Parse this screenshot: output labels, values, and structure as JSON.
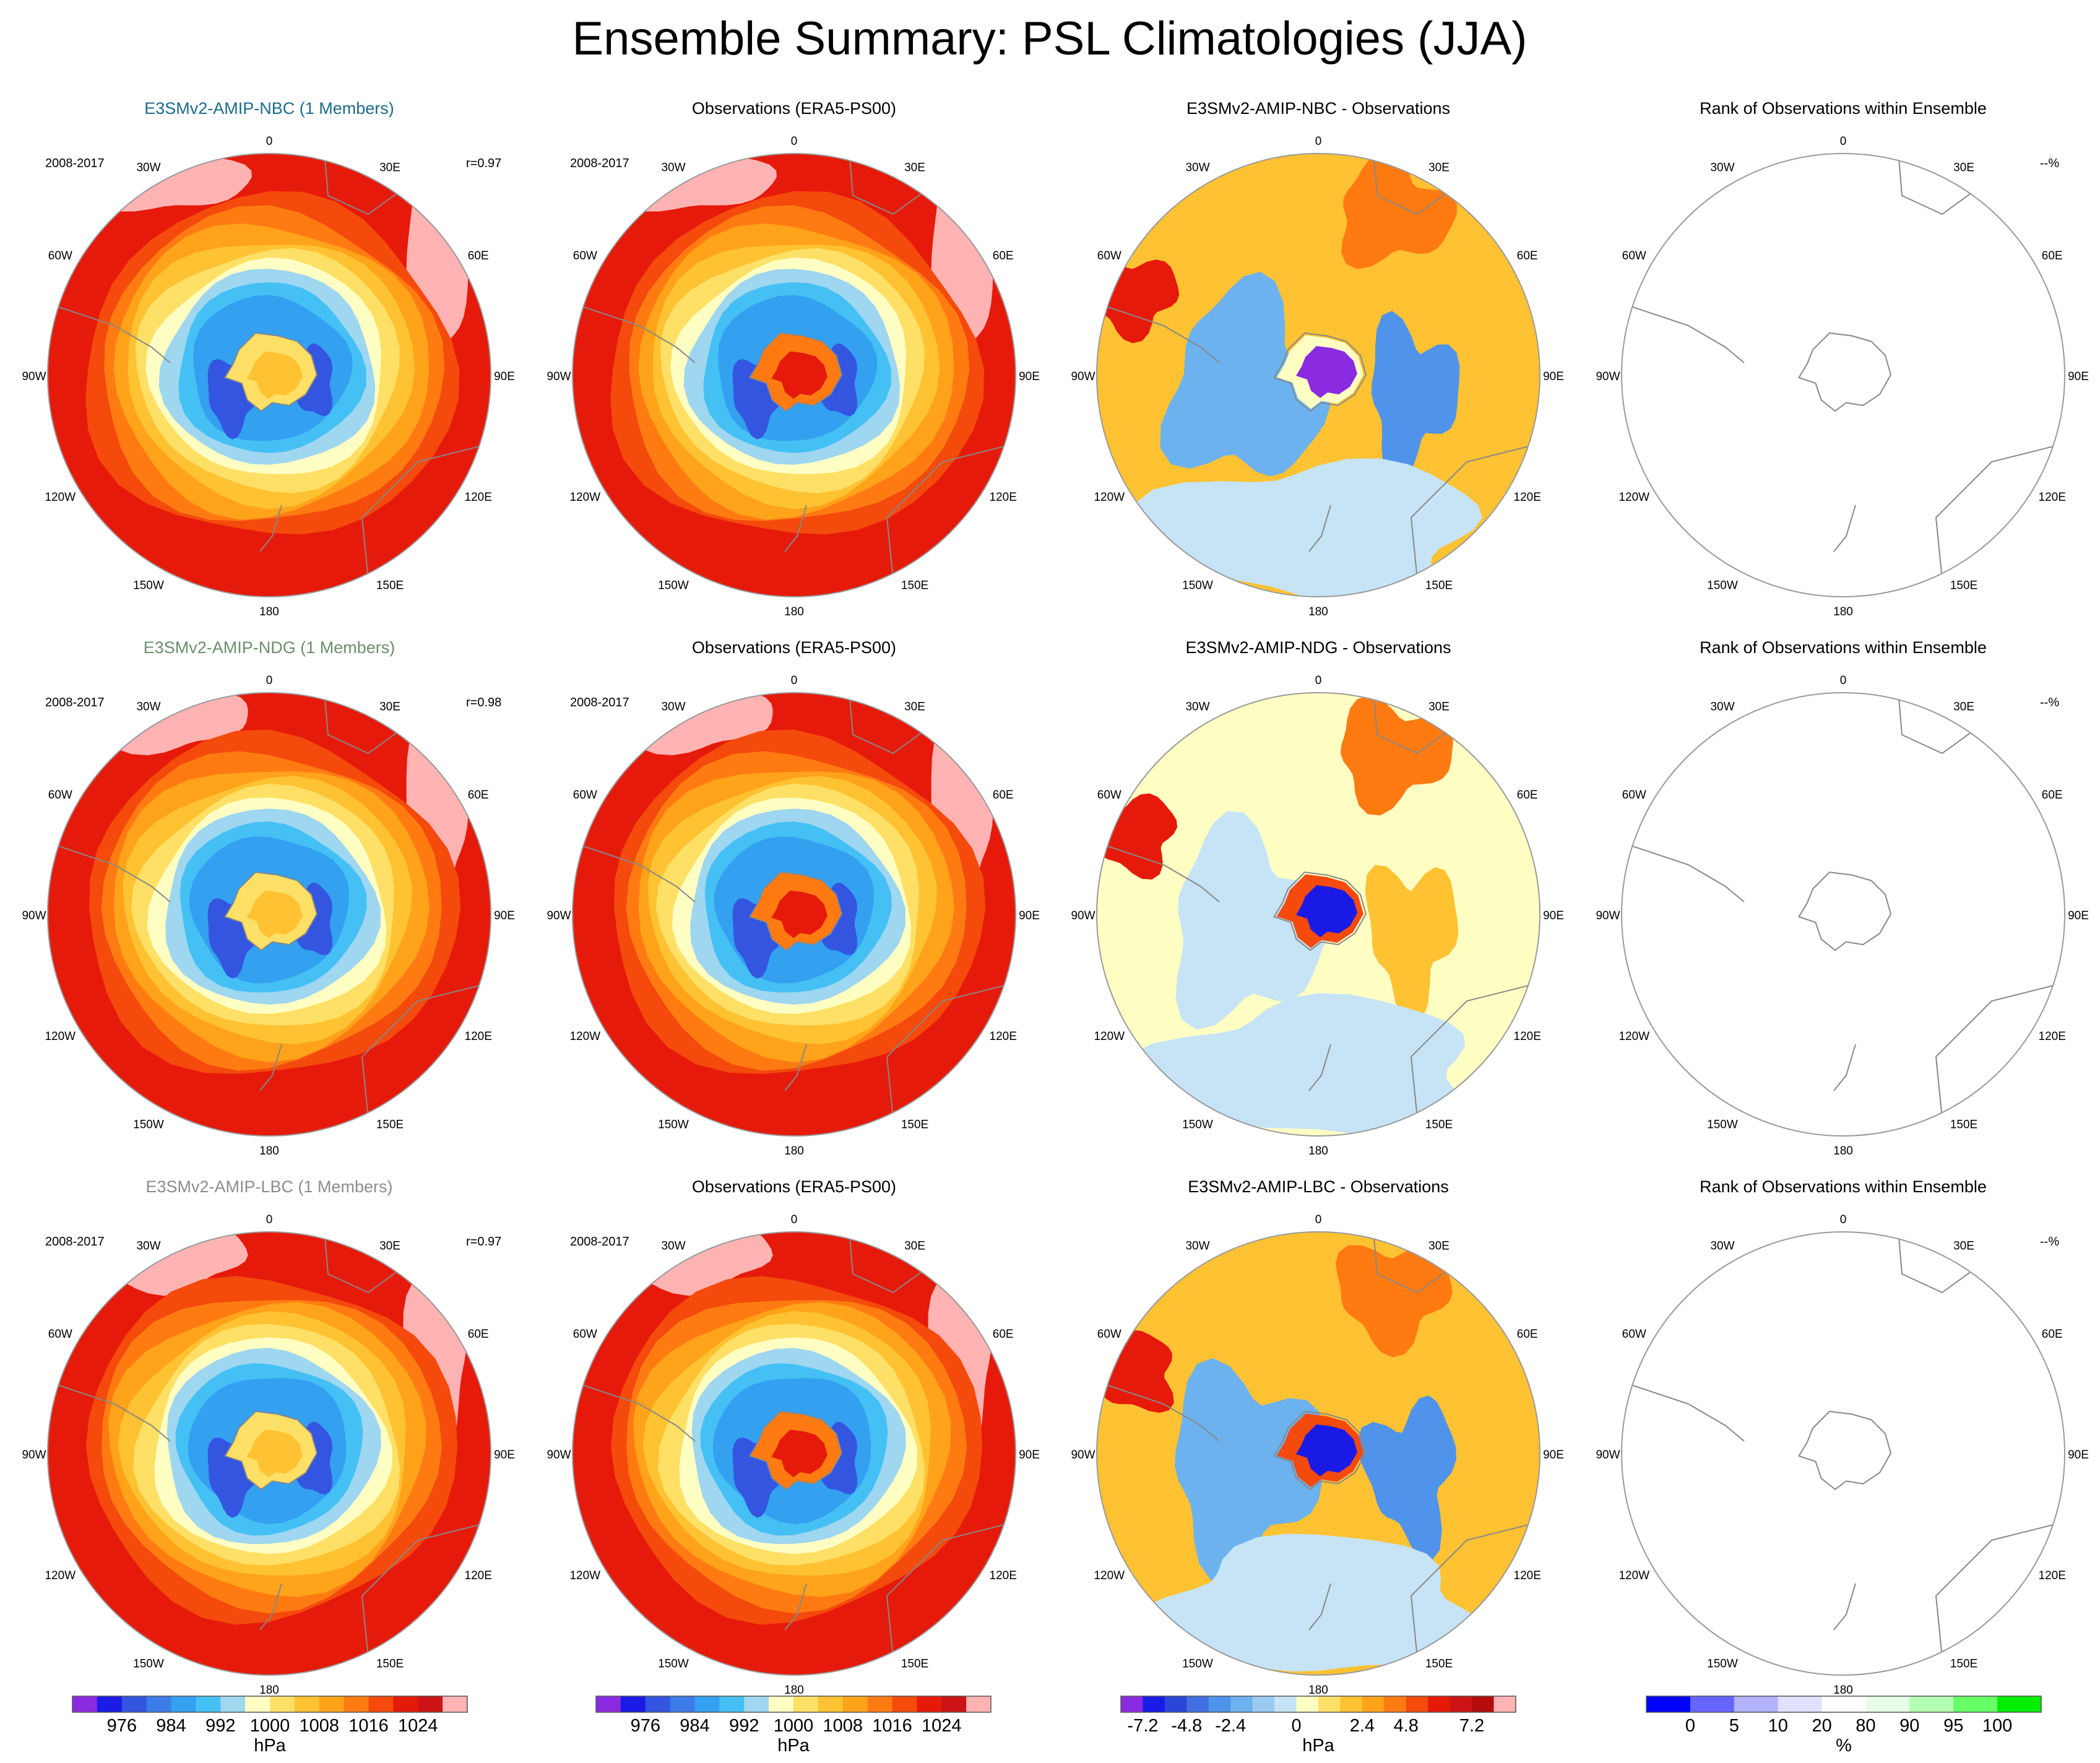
{
  "title": "Ensemble Summary: PSL Climatologies (JJA)",
  "colors": {
    "title_nbc": "#1c6b8a",
    "title_ndg": "#6b8f6b",
    "title_lbc": "#8c8c8c",
    "title_default": "#000000",
    "land_outline": "#888888",
    "frame": "#9a9a9a"
  },
  "palettes": {
    "psl": [
      "#8a2be2",
      "#1a1ae6",
      "#3355e0",
      "#3b7be8",
      "#33a0f0",
      "#45c0f5",
      "#9fd6f0",
      "#ffffc4",
      "#ffe066",
      "#ffc233",
      "#ffa31a",
      "#ff7b12",
      "#f44a0c",
      "#e61a0a",
      "#cc1414",
      "#ffb3b3"
    ],
    "diff": [
      "#8a2be2",
      "#1a1ae6",
      "#2b45d9",
      "#3f6fe0",
      "#4f94ea",
      "#6cb2ef",
      "#9bcaf0",
      "#c6e4f5",
      "#ffffc4",
      "#ffe066",
      "#ffc233",
      "#ffa31a",
      "#ff7b12",
      "#f44a0c",
      "#e61a0a",
      "#cc1414",
      "#b30d0d",
      "#ffb3b3"
    ],
    "rank": [
      "#0000ff",
      "#6666ff",
      "#b3b3ff",
      "#e0e0ff",
      "#ffffff",
      "#e6ffe6",
      "#b3ffb3",
      "#66ff66",
      "#00ee00"
    ]
  },
  "rows": [
    {
      "id": "nbc",
      "panels": [
        {
          "title": "E3SMv2-AMIP-NBC (1 Members)",
          "title_color": "#1c6b8a",
          "period": "2008-2017",
          "stat": "r=0.97",
          "kind": "psl"
        },
        {
          "title": "Observations (ERA5-PS00)",
          "title_color": "#000000",
          "period": "2008-2017",
          "stat": "",
          "kind": "psl"
        },
        {
          "title": "E3SMv2-AMIP-NBC - Observations",
          "title_color": "#000000",
          "period": "",
          "stat": "",
          "kind": "diff"
        },
        {
          "title": "Rank of Observations within Ensemble",
          "title_color": "#000000",
          "period": "",
          "stat": "--%",
          "kind": "rank"
        }
      ]
    },
    {
      "id": "ndg",
      "panels": [
        {
          "title": "E3SMv2-AMIP-NDG (1 Members)",
          "title_color": "#6b8f6b",
          "period": "2008-2017",
          "stat": "r=0.98",
          "kind": "psl"
        },
        {
          "title": "Observations (ERA5-PS00)",
          "title_color": "#000000",
          "period": "2008-2017",
          "stat": "",
          "kind": "psl"
        },
        {
          "title": "E3SMv2-AMIP-NDG - Observations",
          "title_color": "#000000",
          "period": "",
          "stat": "",
          "kind": "diff"
        },
        {
          "title": "Rank of Observations within Ensemble",
          "title_color": "#000000",
          "period": "",
          "stat": "--%",
          "kind": "rank"
        }
      ]
    },
    {
      "id": "lbc",
      "panels": [
        {
          "title": "E3SMv2-AMIP-LBC (1 Members)",
          "title_color": "#8c8c8c",
          "period": "2008-2017",
          "stat": "r=0.97",
          "kind": "psl"
        },
        {
          "title": "Observations (ERA5-PS00)",
          "title_color": "#000000",
          "period": "2008-2017",
          "stat": "",
          "kind": "psl"
        },
        {
          "title": "E3SMv2-AMIP-LBC - Observations",
          "title_color": "#000000",
          "period": "",
          "stat": "",
          "kind": "diff"
        },
        {
          "title": "Rank of Observations within Ensemble",
          "title_color": "#000000",
          "period": "",
          "stat": "--%",
          "kind": "rank"
        }
      ]
    }
  ],
  "lon_labels": [
    "0",
    "30E",
    "60E",
    "90E",
    "120E",
    "150E",
    "180",
    "150W",
    "120W",
    "90W",
    "60W",
    "30W"
  ],
  "colorbars": [
    {
      "palette": "psl",
      "ticks": [
        "976",
        "984",
        "992",
        "1000",
        "1008",
        "1016",
        "1024"
      ],
      "unit": "hPa"
    },
    {
      "palette": "psl",
      "ticks": [
        "976",
        "984",
        "992",
        "1000",
        "1008",
        "1016",
        "1024"
      ],
      "unit": "hPa"
    },
    {
      "palette": "diff",
      "ticks": [
        "-7.2",
        "-4.8",
        "-2.4",
        "0",
        "2.4",
        "4.8",
        "7.2"
      ],
      "unit": "hPa"
    },
    {
      "palette": "rank",
      "ticks": [
        "0",
        "5",
        "10",
        "20",
        "80",
        "90",
        "95",
        "100"
      ],
      "unit": "%"
    }
  ]
}
